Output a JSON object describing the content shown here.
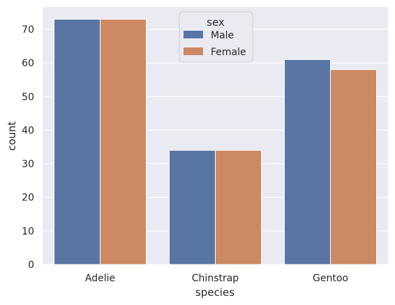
{
  "chart_data": {
    "type": "bar",
    "title": "",
    "xlabel": "species",
    "ylabel": "count",
    "categories": [
      "Adelie",
      "Chinstrap",
      "Gentoo"
    ],
    "series": [
      {
        "name": "Male",
        "color": "#5875a4",
        "values": [
          73,
          34,
          61
        ]
      },
      {
        "name": "Female",
        "color": "#cc8963",
        "values": [
          73,
          34,
          58
        ]
      }
    ],
    "ylim": [
      0,
      76.65
    ],
    "yticks": [
      0,
      10,
      20,
      30,
      40,
      50,
      60,
      70
    ],
    "grid": true,
    "legend": {
      "title": "sex",
      "placement": "upper-center"
    },
    "background_color": "#eaeaf2",
    "grid_color": "#ffffff"
  }
}
